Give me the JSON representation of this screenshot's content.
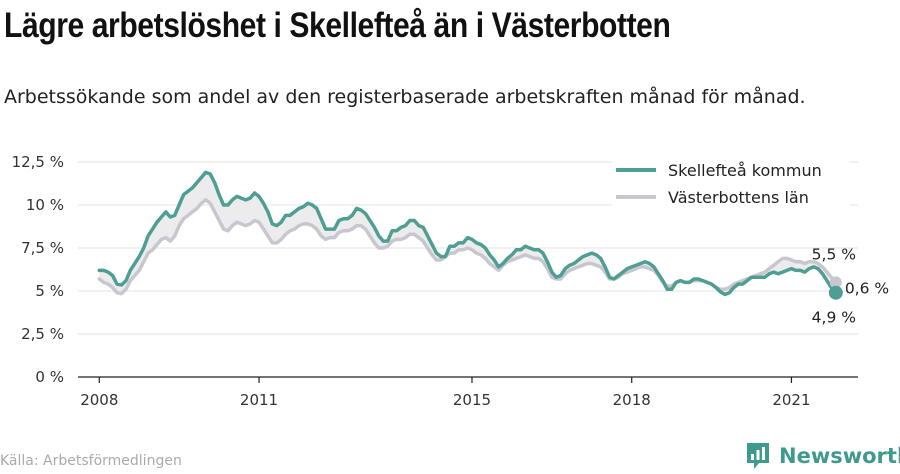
{
  "title": "Lägre arbetslöshet i Skellefteå än i Västerbotten",
  "subtitle": "Arbetssökande som andel av den registerbaserade arbetskraften månad för månad.",
  "source": "Källa: Arbetsförmedlingen",
  "brand": {
    "name": "Newsworthy",
    "logo_icon": "newsworthy-chart-logo-icon"
  },
  "colors": {
    "skelleftea": "#4f9e93",
    "vasterbotten": "#c8c7d0",
    "band": "#ececec",
    "grid": "#e3e3e3",
    "brand": "#3f9a8e"
  },
  "chart_data": {
    "type": "line",
    "x_start": "2008-01",
    "x_end": "2021-06",
    "xlim": [
      2007.6,
      2022.25
    ],
    "ylim": [
      0,
      12.5
    ],
    "x_ticks": [
      {
        "value": 2008,
        "label": "2008"
      },
      {
        "value": 2011,
        "label": "2011"
      },
      {
        "value": 2015,
        "label": "2015"
      },
      {
        "value": 2018,
        "label": "2018"
      },
      {
        "value": 2021,
        "label": "2021"
      }
    ],
    "y_ticks": [
      {
        "value": 0,
        "label": "0 %"
      },
      {
        "value": 2.5,
        "label": "2,5 %"
      },
      {
        "value": 5,
        "label": "5 %"
      },
      {
        "value": 7.5,
        "label": "7,5 %"
      },
      {
        "value": 10,
        "label": "10 %"
      },
      {
        "value": 12.5,
        "label": "12,5 %"
      }
    ],
    "grid": "horizontal",
    "legend_position": "top-right",
    "series": [
      {
        "name": "Skellefteå kommun",
        "color": "#4f9e93",
        "values": [
          6.2,
          6.2,
          6.1,
          5.9,
          5.4,
          5.35,
          5.6,
          6.2,
          6.6,
          7.0,
          7.5,
          8.2,
          8.6,
          9.0,
          9.3,
          9.6,
          9.3,
          9.4,
          10.0,
          10.6,
          10.8,
          11.0,
          11.3,
          11.6,
          11.9,
          11.8,
          11.3,
          10.6,
          10.0,
          10.0,
          10.3,
          10.5,
          10.4,
          10.3,
          10.4,
          10.7,
          10.5,
          10.1,
          9.6,
          8.9,
          8.8,
          9.0,
          9.4,
          9.4,
          9.6,
          9.8,
          9.9,
          10.1,
          10.0,
          9.8,
          9.2,
          8.6,
          8.6,
          8.6,
          9.1,
          9.2,
          9.2,
          9.4,
          9.8,
          9.7,
          9.5,
          9.1,
          8.7,
          8.2,
          7.9,
          7.9,
          8.5,
          8.5,
          8.7,
          8.8,
          9.1,
          9.1,
          8.8,
          8.7,
          8.2,
          7.7,
          7.2,
          7.0,
          7.0,
          7.6,
          7.6,
          7.8,
          7.8,
          8.1,
          8.0,
          7.8,
          7.7,
          7.5,
          7.1,
          6.8,
          6.4,
          6.6,
          6.9,
          7.1,
          7.4,
          7.4,
          7.6,
          7.5,
          7.4,
          7.4,
          7.2,
          6.7,
          6.1,
          5.8,
          5.9,
          6.3,
          6.5,
          6.6,
          6.8,
          7.0,
          7.1,
          7.2,
          7.1,
          6.9,
          6.4,
          5.8,
          5.7,
          5.9,
          6.1,
          6.3,
          6.4,
          6.5,
          6.6,
          6.7,
          6.6,
          6.4,
          6.0,
          5.6,
          5.1,
          5.1,
          5.5,
          5.6,
          5.5,
          5.5,
          5.7,
          5.7,
          5.6,
          5.5,
          5.4,
          5.2,
          4.95,
          4.8,
          4.9,
          5.2,
          5.4,
          5.4,
          5.6,
          5.8,
          5.8,
          5.8,
          5.8,
          6.0,
          6.1,
          6.0,
          6.1,
          6.2,
          6.3,
          6.2,
          6.2,
          6.1,
          6.3,
          6.4,
          6.3,
          6.0,
          5.6,
          5.2,
          4.9
        ]
      },
      {
        "name": "Västerbottens län",
        "color": "#c8c7d0",
        "values": [
          5.7,
          5.5,
          5.4,
          5.2,
          4.9,
          4.85,
          5.1,
          5.6,
          5.9,
          6.2,
          6.7,
          7.2,
          7.4,
          7.7,
          8.0,
          8.1,
          7.9,
          8.2,
          8.8,
          9.2,
          9.4,
          9.6,
          9.8,
          10.1,
          10.3,
          10.1,
          9.6,
          9.1,
          8.6,
          8.5,
          8.8,
          9.0,
          8.9,
          8.8,
          8.9,
          9.1,
          9.0,
          8.6,
          8.2,
          7.8,
          7.8,
          8.0,
          8.3,
          8.5,
          8.6,
          8.8,
          8.9,
          8.9,
          8.8,
          8.6,
          8.2,
          8.0,
          8.1,
          8.1,
          8.4,
          8.5,
          8.5,
          8.6,
          8.8,
          8.8,
          8.6,
          8.2,
          7.8,
          7.5,
          7.5,
          7.6,
          7.9,
          8.0,
          8.0,
          8.1,
          8.3,
          8.3,
          8.1,
          7.9,
          7.5,
          7.1,
          6.8,
          6.8,
          7.0,
          7.2,
          7.2,
          7.4,
          7.4,
          7.5,
          7.4,
          7.2,
          7.1,
          6.9,
          6.6,
          6.4,
          6.2,
          6.5,
          6.7,
          6.8,
          6.9,
          7.0,
          7.1,
          7.0,
          6.9,
          6.9,
          6.7,
          6.3,
          5.8,
          5.7,
          5.7,
          6.0,
          6.2,
          6.3,
          6.4,
          6.5,
          6.6,
          6.6,
          6.5,
          6.4,
          6.1,
          5.7,
          5.7,
          5.8,
          6.0,
          6.1,
          6.2,
          6.3,
          6.4,
          6.4,
          6.3,
          6.2,
          5.9,
          5.5,
          5.3,
          5.3,
          5.5,
          5.6,
          5.5,
          5.5,
          5.6,
          5.6,
          5.6,
          5.5,
          5.4,
          5.2,
          5.1,
          5.1,
          5.2,
          5.4,
          5.5,
          5.6,
          5.7,
          5.8,
          5.9,
          6.0,
          6.1,
          6.3,
          6.5,
          6.7,
          6.9,
          6.9,
          6.8,
          6.7,
          6.7,
          6.6,
          6.7,
          6.7,
          6.6,
          6.4,
          6.1,
          5.8,
          5.5
        ]
      }
    ],
    "annotations": [
      {
        "label": "5,5 %",
        "series": "Västerbottens län",
        "value": 5.5
      },
      {
        "label": "0,6 %",
        "note": "difference"
      },
      {
        "label": "4,9 %",
        "series": "Skellefteå kommun",
        "value": 4.9
      }
    ]
  }
}
